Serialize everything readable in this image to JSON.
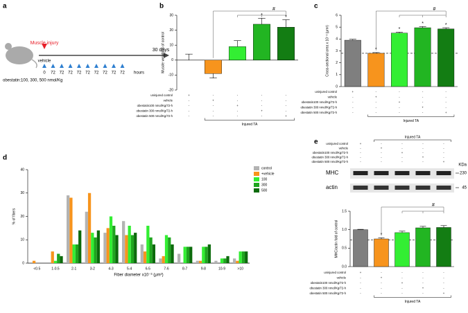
{
  "panel_labels": [
    "a",
    "b",
    "c",
    "d",
    "e"
  ],
  "diagram": {
    "injury_label": "Muscle injury",
    "end_label": "30 days",
    "vehicle_label": "vehicle",
    "time_labels": [
      0,
      72,
      72,
      72,
      72,
      72,
      72,
      72,
      72,
      72
    ],
    "time_unit": "hours",
    "dose_label": "obestatin:100, 300, 500 nmol/Kg"
  },
  "conditions": {
    "labels": [
      "uninjured control",
      "vehicle",
      "obestatin100 nmol/Kg/72-h",
      "obestatin 300 nmol/Kg/72-h",
      "obestatin 500 nmol/Kg/72-h"
    ],
    "rows": [
      [
        "+",
        "-",
        "-",
        "-",
        "-"
      ],
      [
        "-",
        "+",
        "-",
        "-",
        "-"
      ],
      [
        "-",
        "-",
        "+",
        "-",
        "-"
      ],
      [
        "-",
        "-",
        "-",
        "+",
        "-"
      ],
      [
        "-",
        "-",
        "-",
        "-",
        "+"
      ]
    ],
    "group_label": "Injured TA"
  },
  "blot": {
    "bands": [
      "MHC",
      "actin"
    ],
    "unit": "KDa",
    "sizes": [
      230,
      45
    ]
  },
  "chart_data": [
    {
      "type": "bar",
      "ylabel": "Muscle weight % of control",
      "values": [
        0,
        -9,
        9,
        24,
        22
      ],
      "errors": [
        4,
        3,
        4,
        4,
        5
      ],
      "colors": [
        "#7f7f7f",
        "#f7941d",
        "#33ee33",
        "#22b522",
        "#137d13"
      ],
      "significance": [
        null,
        null,
        null,
        "*",
        "*"
      ],
      "bracket_label": "#",
      "ylim": [
        -20,
        30
      ],
      "yticks": [
        -20,
        -10,
        0,
        10,
        20,
        30
      ]
    },
    {
      "type": "bar",
      "ylabel": "Cross-sectional area x 10⁻³ (μm²)",
      "values": [
        3.9,
        2.8,
        4.5,
        4.95,
        4.85
      ],
      "errors": [
        0.08,
        0.06,
        0.08,
        0.1,
        0.1
      ],
      "colors": [
        "#7f7f7f",
        "#f7941d",
        "#33ee33",
        "#22b522",
        "#137d13"
      ],
      "significance": [
        null,
        "*",
        "*",
        "*",
        "*"
      ],
      "bracket_label": "#",
      "reference_line": 2.8,
      "ylim": [
        0,
        6
      ],
      "yticks": [
        0,
        1,
        2,
        3,
        4,
        5,
        6
      ]
    },
    {
      "type": "grouped_bar",
      "ylabel": "% of fibers",
      "xlabel": "Fiber diameter x10⁻³ (μm²)",
      "categories": [
        "<0.5",
        "1-0.5",
        "2-1",
        "3-2",
        "4-3",
        "5-4",
        "6-5",
        "7-6",
        "8-7",
        "9-8",
        "10-9",
        ">10"
      ],
      "series": [
        {
          "name": "control",
          "color": "#b3b3b3",
          "values": [
            0,
            0,
            29,
            22,
            13,
            18,
            8,
            2,
            4,
            1,
            1,
            2
          ]
        },
        {
          "name": "+vehicle",
          "color": "#f7941d",
          "values": [
            1,
            5,
            28,
            30,
            15,
            12,
            5,
            3,
            0,
            1,
            0,
            1
          ]
        },
        {
          "name": "100",
          "color": "#33ee33",
          "values": [
            0,
            1,
            8,
            13,
            20,
            16,
            16,
            12,
            7,
            7,
            2,
            5
          ]
        },
        {
          "name": "300",
          "color": "#1fa51f",
          "values": [
            0,
            4,
            8,
            11,
            16,
            12,
            11,
            11,
            7,
            7,
            2,
            5
          ]
        },
        {
          "name": "500",
          "color": "#0c6b0c",
          "values": [
            0,
            3,
            14,
            14,
            12,
            13,
            8,
            8,
            7,
            8,
            3,
            5
          ]
        }
      ],
      "legend": "right",
      "ylim": [
        0,
        40
      ],
      "yticks": [
        0,
        10,
        20,
        30,
        40
      ]
    },
    {
      "type": "bar",
      "ylabel": "MHC/actin fold of control",
      "values": [
        1.0,
        0.75,
        0.92,
        1.05,
        1.06
      ],
      "errors": [
        0.01,
        0.03,
        0.04,
        0.04,
        0.05
      ],
      "colors": [
        "#7f7f7f",
        "#f7941d",
        "#33ee33",
        "#22b522",
        "#137d13"
      ],
      "significance": [
        null,
        "*",
        null,
        null,
        null
      ],
      "bracket_label": "#",
      "reference_line": 0.72,
      "ylim": [
        0,
        1.5
      ],
      "yticks": [
        {
          "value": 0,
          "label": "0.0"
        },
        0.5,
        {
          "value": 1,
          "label": "1.0"
        },
        1.5
      ]
    }
  ]
}
